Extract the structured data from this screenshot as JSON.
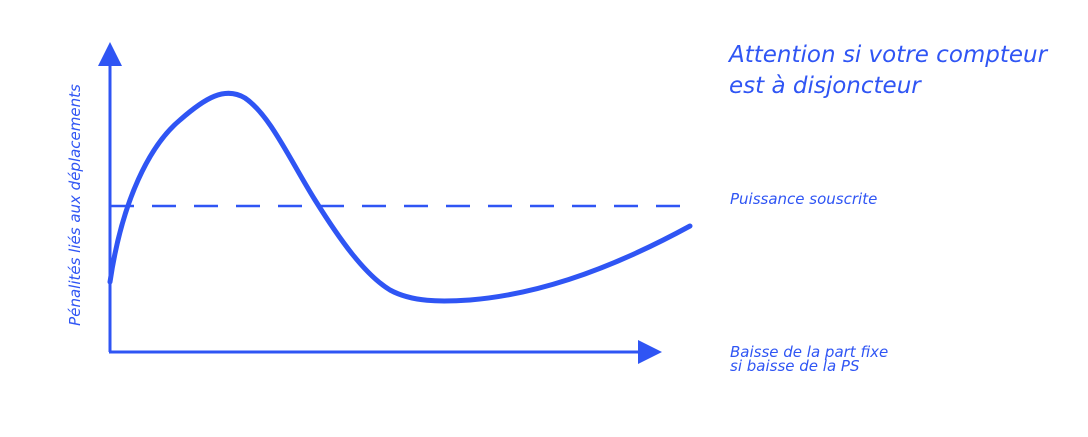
{
  "headline": {
    "line1": "Attention si votre compteur",
    "line2": "est à disjoncteur"
  },
  "threshold_label": "Puissance souscrite",
  "x_axis_label": {
    "line1": "Baisse de la part fixe",
    "line2": "si baisse de la PS"
  },
  "y_axis_label": "Pénalités liés aux déplacements",
  "colors": {
    "accent": "#2f55f4"
  }
}
